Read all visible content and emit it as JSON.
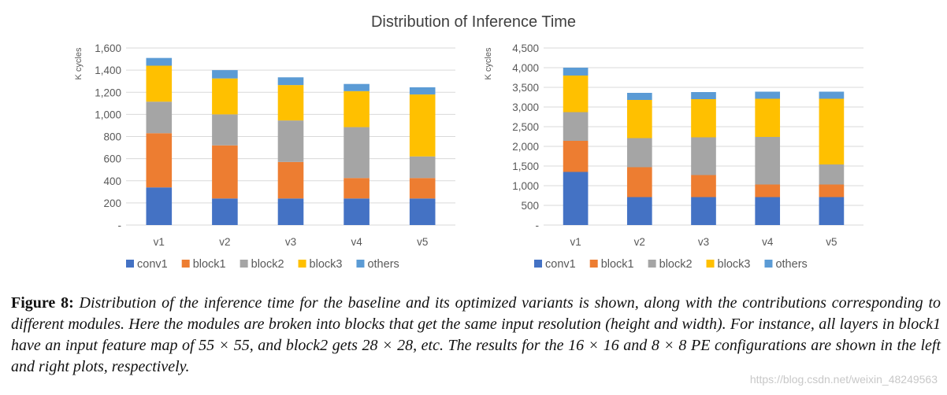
{
  "figure_title": "Distribution of Inference Time",
  "colors": {
    "conv1": "#4472c4",
    "block1": "#ed7d31",
    "block2": "#a5a5a5",
    "block3": "#ffc000",
    "others": "#5b9bd5",
    "grid": "#d9d9d9"
  },
  "chart_data": [
    {
      "type": "bar",
      "stacked": true,
      "title": "Distribution of Inference Time",
      "ylabel": "K cycles",
      "xlabel": "",
      "ylim": [
        0,
        1600
      ],
      "yticks": [
        0,
        200,
        400,
        600,
        800,
        1000,
        1200,
        1400,
        1600
      ],
      "ytick_labels": [
        "-",
        "200",
        "400",
        "600",
        "800",
        "1,000",
        "1,200",
        "1,400",
        "1,600"
      ],
      "categories": [
        "v1",
        "v2",
        "v3",
        "v4",
        "v5"
      ],
      "series": [
        {
          "name": "conv1",
          "values": [
            340,
            240,
            240,
            240,
            240
          ]
        },
        {
          "name": "block1",
          "values": [
            490,
            480,
            330,
            185,
            185
          ]
        },
        {
          "name": "block2",
          "values": [
            285,
            280,
            375,
            460,
            195
          ]
        },
        {
          "name": "block3",
          "values": [
            325,
            325,
            320,
            325,
            560
          ]
        },
        {
          "name": "others",
          "values": [
            70,
            75,
            70,
            65,
            65
          ]
        }
      ],
      "legend_position": "bottom"
    },
    {
      "type": "bar",
      "stacked": true,
      "title": "Distribution of Inference Time",
      "ylabel": "K cycles",
      "xlabel": "",
      "ylim": [
        0,
        4500
      ],
      "yticks": [
        0,
        500,
        1000,
        1500,
        2000,
        2500,
        3000,
        3500,
        4000,
        4500
      ],
      "ytick_labels": [
        "-",
        "500",
        "1,000",
        "1,500",
        "2,000",
        "2,500",
        "3,000",
        "3,500",
        "4,000",
        "4,500"
      ],
      "categories": [
        "v1",
        "v2",
        "v3",
        "v4",
        "v5"
      ],
      "series": [
        {
          "name": "conv1",
          "values": [
            1350,
            710,
            710,
            710,
            710
          ]
        },
        {
          "name": "block1",
          "values": [
            790,
            760,
            560,
            320,
            320
          ]
        },
        {
          "name": "block2",
          "values": [
            730,
            740,
            960,
            1210,
            510
          ]
        },
        {
          "name": "block3",
          "values": [
            930,
            970,
            970,
            970,
            1670
          ]
        },
        {
          "name": "others",
          "values": [
            200,
            180,
            180,
            180,
            180
          ]
        }
      ],
      "legend_position": "bottom"
    }
  ],
  "caption": {
    "label": "Figure 8:",
    "text": "Distribution of the inference time for the baseline and its optimized variants is shown, along with the contributions corresponding to different modules. Here the modules are broken into blocks that get the same input resolution (height and width). For instance, all layers in block1 have an input feature map of 55 × 55, and block2 gets 28 × 28, etc. The results for the 16 × 16 and 8 × 8 PE configurations are shown in the left and right plots, respectively."
  },
  "watermark": "https://blog.csdn.net/weixin_48249563"
}
